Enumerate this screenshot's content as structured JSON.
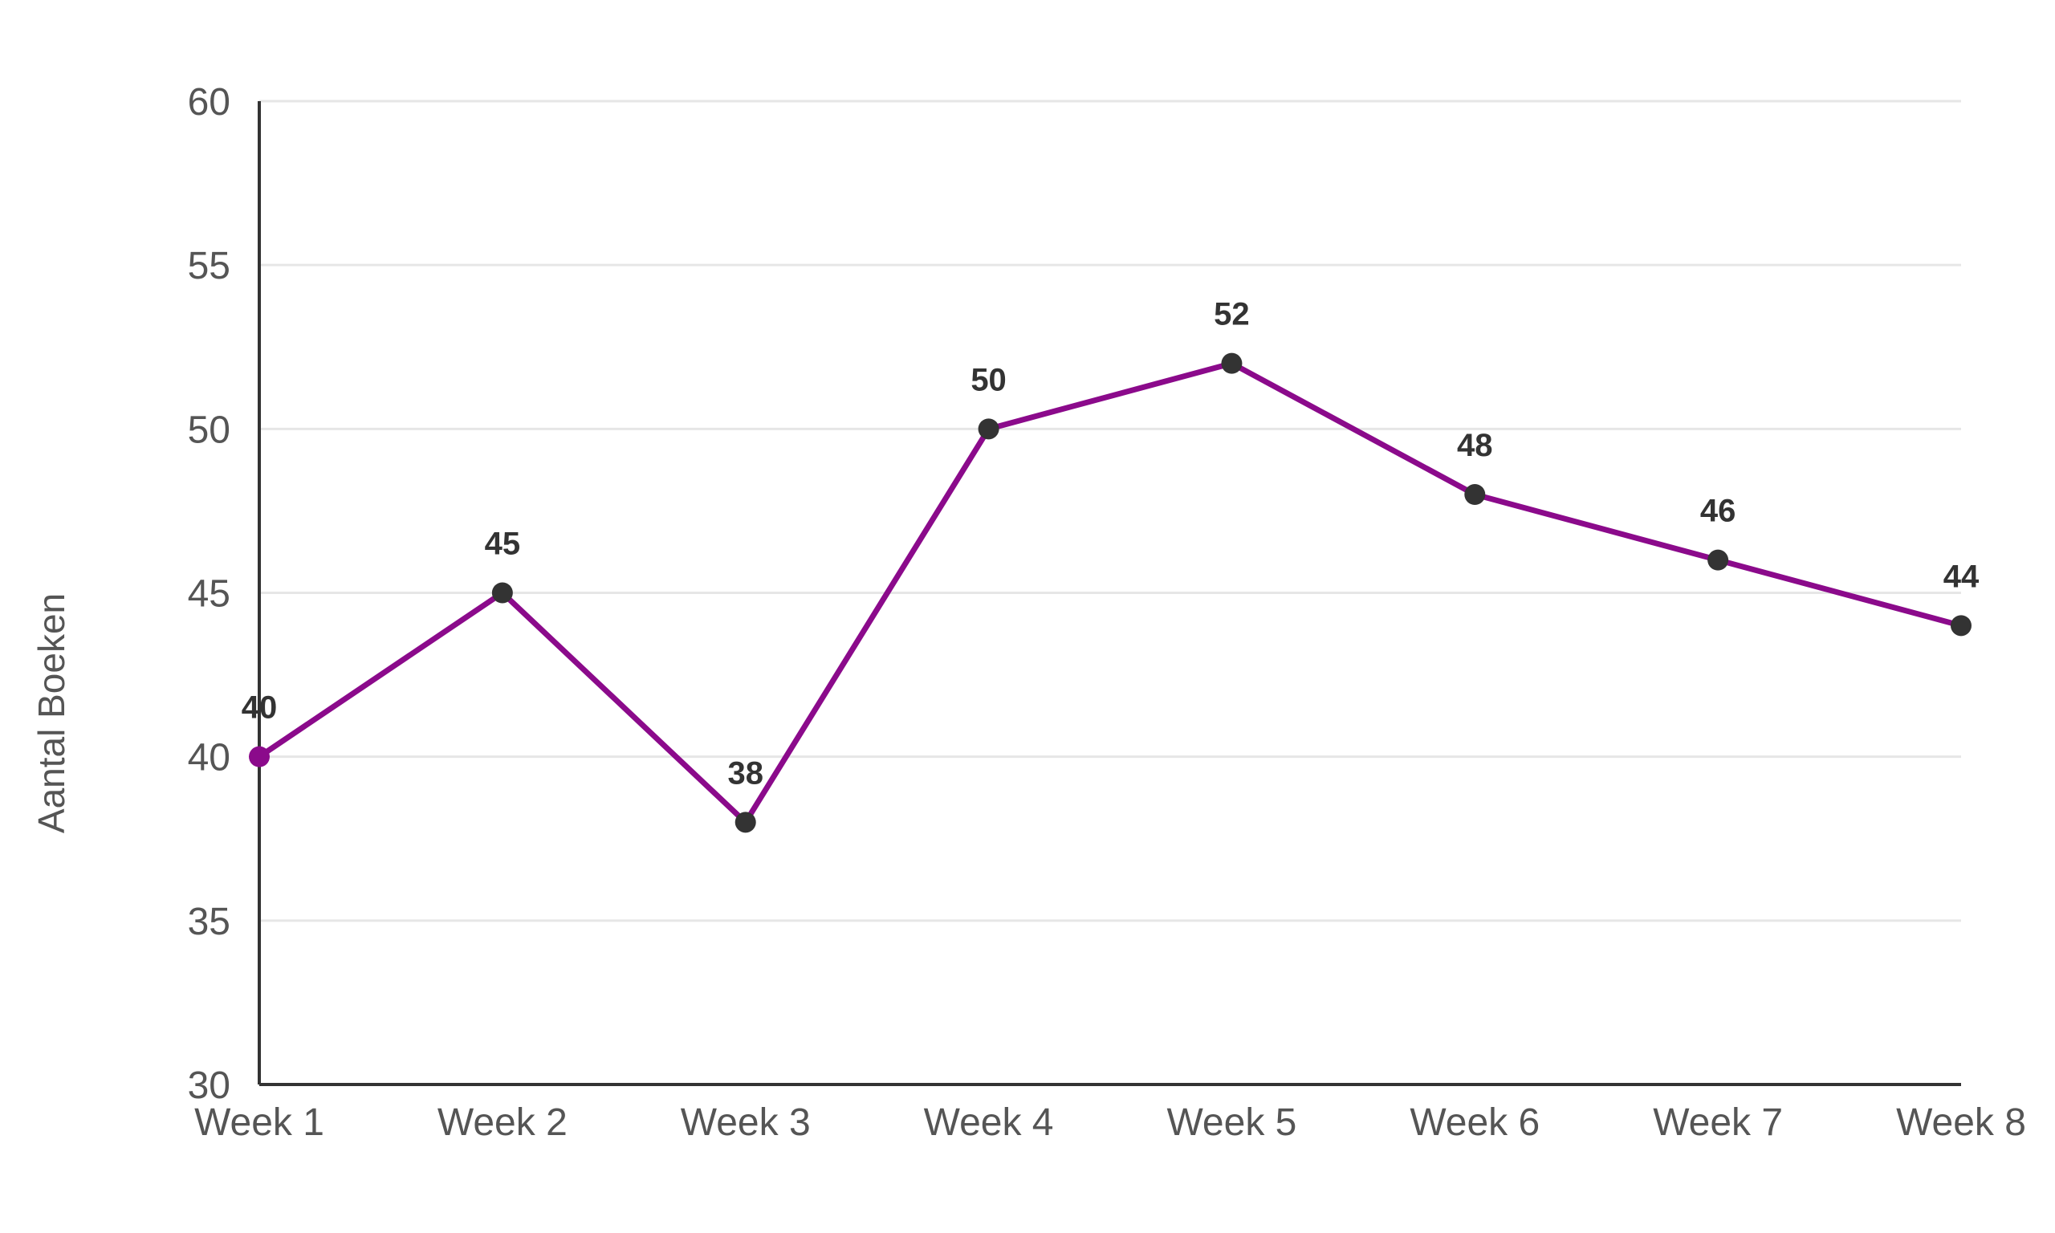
{
  "colors": {
    "series": "#8b0a8b",
    "point": "#333333",
    "first_point": "#8b0a8b",
    "grid": "#e6e6e6",
    "axis": "#333333"
  },
  "chart_data": {
    "type": "line",
    "title": "",
    "xlabel": "",
    "ylabel": "Aantal Boeken",
    "categories": [
      "Week 1",
      "Week 2",
      "Week 3",
      "Week 4",
      "Week 5",
      "Week 6",
      "Week 7",
      "Week 8"
    ],
    "series": [
      {
        "values": [
          40,
          45,
          38,
          50,
          52,
          48,
          46,
          44
        ]
      }
    ],
    "ylim": [
      30,
      60
    ],
    "yticks": [
      30,
      35,
      40,
      45,
      50,
      55,
      60
    ],
    "grid": true,
    "legend": "none"
  }
}
